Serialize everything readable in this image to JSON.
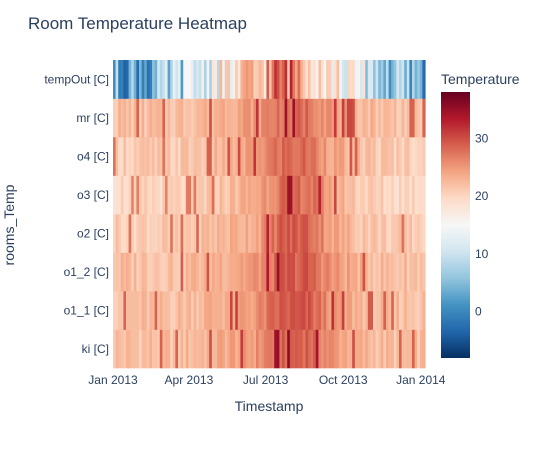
{
  "chart_data": {
    "type": "heatmap",
    "title": "Room Temperature Heatmap",
    "xlabel": "Timestamp",
    "ylabel": "rooms_Temp",
    "x_ticks": [
      "Jan 2013",
      "Apr 2013",
      "Jul 2013",
      "Oct 2013",
      "Jan 2014"
    ],
    "x_range": [
      "2013-01-01",
      "2014-01-06"
    ],
    "rows": [
      "ki [C]",
      "o1_1 [C]",
      "o1_2 [C]",
      "o2 [C]",
      "o3 [C]",
      "o4 [C]",
      "mr [C]",
      "tempOut [C]"
    ],
    "colorbar": {
      "title": "Temperature",
      "ticks": [
        0,
        10,
        20,
        30
      ],
      "range": [
        -8,
        38
      ],
      "colorscale": "RdBu (reversed)"
    },
    "approx_monthly_means": {
      "months": [
        "2013-01",
        "2013-02",
        "2013-03",
        "2013-04",
        "2013-05",
        "2013-06",
        "2013-07",
        "2013-08",
        "2013-09",
        "2013-10",
        "2013-11",
        "2013-12"
      ],
      "ki [C]": [
        22,
        22,
        22,
        23,
        24,
        25,
        29,
        29,
        25,
        23,
        22,
        22
      ],
      "o1_1 [C]": [
        22,
        22,
        22,
        23,
        24,
        25,
        29,
        29,
        25,
        23,
        22,
        22
      ],
      "o1_2 [C]": [
        22,
        22,
        22,
        23,
        24,
        25,
        29,
        29,
        25,
        23,
        22,
        22
      ],
      "o2 [C]": [
        21,
        21,
        21,
        22,
        23,
        24,
        29,
        29,
        24,
        22,
        21,
        21
      ],
      "o3 [C]": [
        20,
        20,
        20,
        21,
        22,
        24,
        28,
        28,
        24,
        21,
        20,
        20
      ],
      "o4 [C]": [
        21,
        21,
        21,
        22,
        23,
        25,
        28,
        28,
        24,
        22,
        21,
        21
      ],
      "mr [C]": [
        22,
        22,
        22,
        23,
        24,
        25,
        28,
        28,
        25,
        23,
        22,
        22
      ],
      "tempOut [C]": [
        3,
        3,
        8,
        13,
        17,
        21,
        28,
        25,
        17,
        13,
        6,
        4
      ]
    }
  }
}
